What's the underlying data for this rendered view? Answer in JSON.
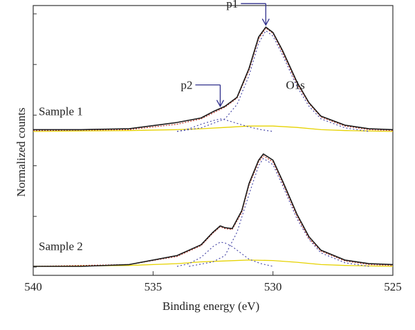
{
  "chart_data": {
    "type": "line",
    "xlabel": "Binding energy (eV)",
    "ylabel": "Normalized counts",
    "x_ticks": [
      540,
      535,
      530,
      525
    ],
    "xlim": [
      540,
      525
    ],
    "x_reversed": true,
    "grid": false,
    "y_unlabeled_ticks": 6,
    "samples": [
      {
        "label": "Sample 1",
        "baseline_offset": 1.55,
        "annotations": [
          {
            "text": "p1",
            "x": 530.3
          },
          {
            "text": "p2",
            "x": 532.2
          },
          {
            "text": "O1s",
            "x": 529.0
          }
        ],
        "series": [
          {
            "role": "measured",
            "color": "#1a1a1a",
            "x": [
              540,
              538,
              536,
              534,
              533,
              532.5,
              532,
              531.5,
              531,
              530.6,
              530.3,
              530,
              529.6,
              529,
              528.5,
              528,
              527,
              526,
              525
            ],
            "y": [
              0.02,
              0.02,
              0.03,
              0.1,
              0.15,
              0.22,
              0.28,
              0.38,
              0.7,
              1.05,
              1.16,
              1.1,
              0.9,
              0.55,
              0.32,
              0.17,
              0.07,
              0.03,
              0.02
            ]
          },
          {
            "role": "fit_envelope",
            "color": "#c0392b",
            "x": [
              540,
              536,
              534,
              533,
              532,
              531.5,
              531,
              530.6,
              530.3,
              530,
              529.6,
              529,
              528.5,
              528,
              527,
              526,
              525
            ],
            "y": [
              0.01,
              0.02,
              0.08,
              0.14,
              0.27,
              0.37,
              0.68,
              1.03,
              1.15,
              1.09,
              0.88,
              0.53,
              0.31,
              0.16,
              0.06,
              0.02,
              0.01
            ]
          },
          {
            "role": "p1_component",
            "color": "#4a4aa8",
            "x": [
              534,
              533,
              532,
              531.5,
              531,
              530.6,
              530.3,
              530,
              529.6,
              529,
              528.5,
              528,
              527,
              526
            ],
            "y": [
              0.0,
              0.04,
              0.14,
              0.3,
              0.62,
              0.98,
              1.12,
              1.06,
              0.85,
              0.5,
              0.28,
              0.14,
              0.04,
              0.0
            ]
          },
          {
            "role": "p2_component",
            "color": "#4a4aa8",
            "x": [
              534,
              533.5,
              533,
              532.5,
              532.2,
              532,
              531.5,
              531,
              530.5,
              530
            ],
            "y": [
              0.0,
              0.03,
              0.08,
              0.12,
              0.14,
              0.13,
              0.09,
              0.05,
              0.02,
              0.0
            ]
          },
          {
            "role": "background",
            "color": "#e6d200",
            "x": [
              540,
              536,
              534,
              533,
              532,
              531,
              530,
              529,
              528,
              527,
              526,
              525
            ],
            "y": [
              0.0,
              0.01,
              0.02,
              0.03,
              0.045,
              0.06,
              0.06,
              0.045,
              0.02,
              0.01,
              0.005,
              0.0
            ]
          }
        ]
      },
      {
        "label": "Sample 2",
        "baseline_offset": 0.05,
        "annotations": [],
        "series": [
          {
            "role": "measured",
            "color": "#1a1a1a",
            "x": [
              540,
              538,
              536,
              534,
              533,
              532.5,
              532.2,
              532,
              531.7,
              531.3,
              531,
              530.6,
              530.4,
              530,
              529.6,
              529,
              528.5,
              528,
              527,
              526,
              525
            ],
            "y": [
              0.0,
              0.0,
              0.02,
              0.12,
              0.24,
              0.38,
              0.45,
              0.43,
              0.42,
              0.62,
              0.92,
              1.18,
              1.25,
              1.18,
              0.95,
              0.58,
              0.33,
              0.18,
              0.07,
              0.03,
              0.02
            ]
          },
          {
            "role": "fit_envelope",
            "color": "#c0392b",
            "x": [
              540,
              536,
              534,
              533,
              532.5,
              532.2,
              532,
              531.7,
              531.3,
              531,
              530.6,
              530.4,
              530,
              529.6,
              529,
              528.5,
              528,
              527,
              526,
              525
            ],
            "y": [
              0.0,
              0.02,
              0.11,
              0.23,
              0.37,
              0.44,
              0.42,
              0.41,
              0.6,
              0.9,
              1.16,
              1.23,
              1.16,
              0.93,
              0.56,
              0.31,
              0.17,
              0.06,
              0.02,
              0.01
            ]
          },
          {
            "role": "p1_component",
            "color": "#4a4aa8",
            "x": [
              533.5,
              532.5,
              532,
              531.5,
              531,
              530.6,
              530.4,
              530,
              529.6,
              529,
              528.5,
              528,
              527,
              526
            ],
            "y": [
              0.0,
              0.05,
              0.12,
              0.38,
              0.8,
              1.12,
              1.2,
              1.13,
              0.9,
              0.53,
              0.3,
              0.15,
              0.04,
              0.0
            ]
          },
          {
            "role": "p2_component",
            "color": "#4a4aa8",
            "x": [
              534,
              533.5,
              533,
              532.5,
              532.2,
              532,
              531.7,
              531.3,
              531,
              530.5,
              530
            ],
            "y": [
              0.0,
              0.03,
              0.1,
              0.22,
              0.27,
              0.26,
              0.22,
              0.14,
              0.08,
              0.03,
              0.0
            ]
          },
          {
            "role": "background",
            "color": "#e6d200",
            "x": [
              540,
              536,
              534,
              533,
              532,
              531,
              530,
              529,
              528,
              527,
              526,
              525
            ],
            "y": [
              0.0,
              0.01,
              0.03,
              0.05,
              0.06,
              0.07,
              0.065,
              0.045,
              0.02,
              0.01,
              0.005,
              0.0
            ]
          }
        ]
      }
    ]
  }
}
